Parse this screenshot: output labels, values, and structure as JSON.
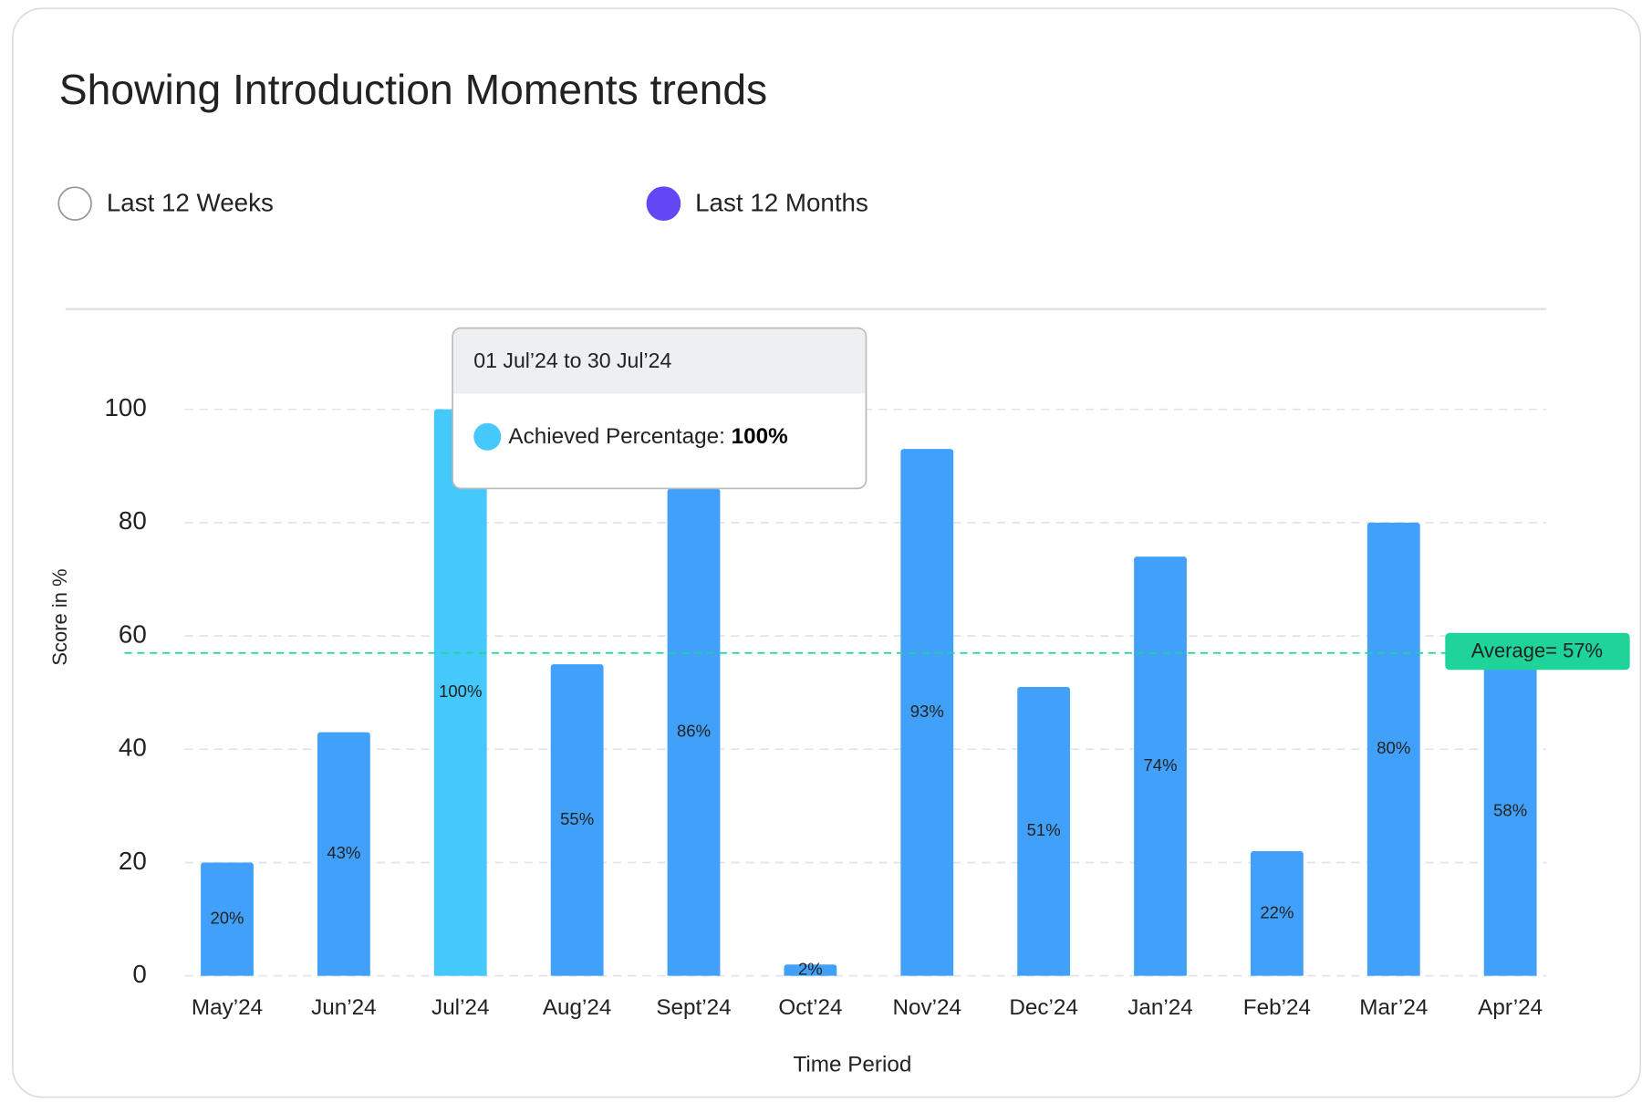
{
  "chart_data": {
    "type": "bar",
    "title": "Showing Introduction Moments trends",
    "options": [
      {
        "label": "Last 12 Weeks",
        "selected": false
      },
      {
        "label": "Last 12 Months",
        "selected": true
      }
    ],
    "categories": [
      "May’24",
      "Jun’24",
      "Jul’24",
      "Aug’24",
      "Sept’24",
      "Oct’24",
      "Nov’24",
      "Dec’24",
      "Jan’24",
      "Feb’24",
      "Mar’24",
      "Apr’24"
    ],
    "values": [
      20,
      43,
      100,
      55,
      86,
      2,
      93,
      51,
      74,
      22,
      80,
      58
    ],
    "value_labels": [
      "20%",
      "43%",
      "100%",
      "55%",
      "86%",
      "2%",
      "93%",
      "51%",
      "74%",
      "22%",
      "80%",
      "58%"
    ],
    "colors": [
      "#40a0fa",
      "#40a0fa",
      "#45c8fb",
      "#40a0fa",
      "#40a0fa",
      "#40a0fa",
      "#40a0fa",
      "#40a0fa",
      "#40a0fa",
      "#40a0fa",
      "#40a0fa",
      "#40a0fa"
    ],
    "ylim": [
      0,
      100
    ],
    "yticks": [
      0,
      20,
      40,
      60,
      80,
      100
    ],
    "grid": true,
    "y_label": "Score in %",
    "x_label": "Time Period",
    "average": 57,
    "average_label": "Average= 57%",
    "average_color": "#1ed498",
    "tooltip": {
      "title": "01 Jul’24 to 30 Jul’24",
      "label": "Achieved Percentage:",
      "index": 2
    }
  }
}
